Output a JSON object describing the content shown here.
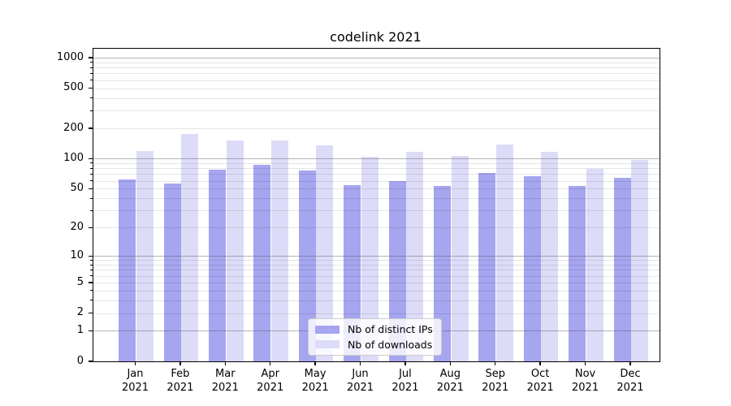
{
  "title": "codelink 2021",
  "chart_data": {
    "type": "bar",
    "title": "codelink 2021",
    "categories": [
      "Jan 2021",
      "Feb 2021",
      "Mar 2021",
      "Apr 2021",
      "May 2021",
      "Jun 2021",
      "Jul 2021",
      "Aug 2021",
      "Sep 2021",
      "Oct 2021",
      "Nov 2021",
      "Dec 2021"
    ],
    "series": [
      {
        "name": "Nb of distinct IPs",
        "color": "#a5a5f0",
        "values": [
          62,
          56,
          78,
          87,
          76,
          54,
          60,
          53,
          72,
          67,
          53,
          64
        ]
      },
      {
        "name": "Nb of downloads",
        "color": "#dcdcf8",
        "values": [
          119,
          175,
          151,
          151,
          136,
          105,
          117,
          106,
          137,
          117,
          79,
          97
        ]
      }
    ],
    "xlabel": "",
    "ylabel": "",
    "y_scale": "log1p",
    "ylim": [
      0,
      1230
    ],
    "y_tick_labels": [
      "0",
      "1",
      "2",
      "5",
      "10",
      "20",
      "50",
      "100",
      "200",
      "500",
      "1000"
    ],
    "y_ticks": [
      0,
      1,
      2,
      5,
      10,
      20,
      50,
      100,
      200,
      500,
      1000
    ],
    "grid": true,
    "legend_position": "lower center",
    "grid_major_values": [
      1,
      10,
      100,
      1000
    ],
    "colors": {
      "grid_major": "#b0b0b0",
      "grid_minor": "#e6e6e6",
      "spine": "#000000",
      "legend_border": "#cccccc"
    }
  }
}
